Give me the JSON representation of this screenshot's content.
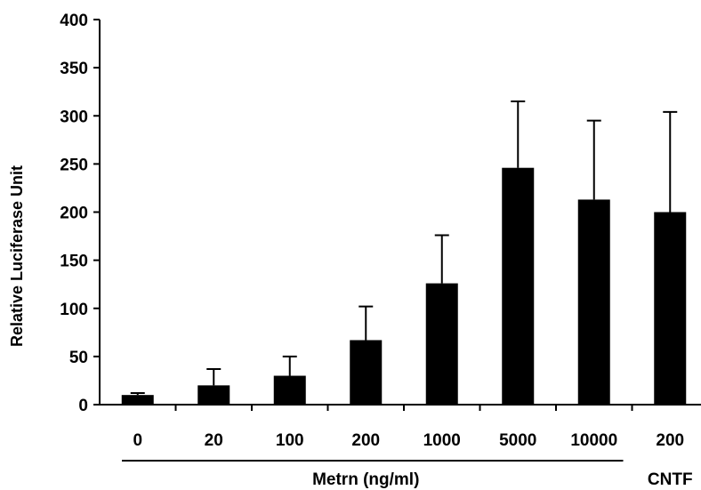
{
  "chart_data": {
    "type": "bar",
    "categories": [
      "0",
      "20",
      "100",
      "200",
      "1000",
      "5000",
      "10000",
      "200"
    ],
    "values": [
      10,
      20,
      30,
      67,
      126,
      246,
      213,
      200
    ],
    "error_upper": [
      12,
      37,
      50,
      102,
      176,
      315,
      295,
      304
    ],
    "ylabel": "Relative Luciferase Unit",
    "ylim": [
      0,
      400
    ],
    "yticks": [
      "0",
      "50",
      "100",
      "150",
      "200",
      "250",
      "300",
      "350",
      "400"
    ],
    "groups": [
      {
        "label": "Metrn (ng/ml)",
        "categories": [
          0,
          6
        ]
      },
      {
        "label": "CNTF",
        "categories": [
          7,
          7
        ]
      }
    ],
    "grid": false,
    "bar_color": "#000000"
  }
}
